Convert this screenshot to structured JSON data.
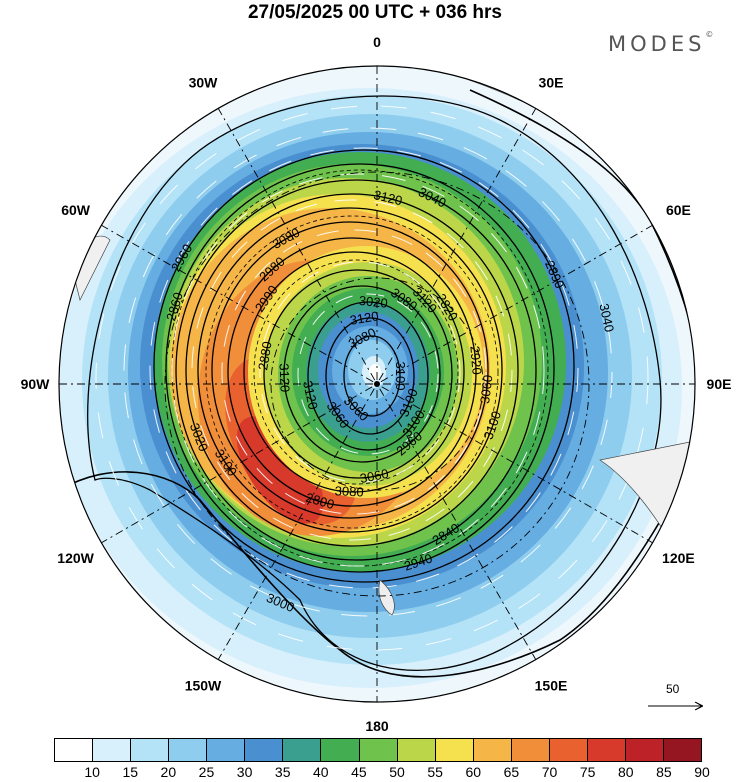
{
  "title": "27/05/2025  00 UTC  + 036 hrs",
  "brand": "MODES",
  "brand_mark": "©",
  "longitude_labels": [
    {
      "text": "0",
      "lon": 0
    },
    {
      "text": "30E",
      "lon": 30
    },
    {
      "text": "60E",
      "lon": 60
    },
    {
      "text": "90E",
      "lon": 90
    },
    {
      "text": "120E",
      "lon": 120
    },
    {
      "text": "150E",
      "lon": 150
    },
    {
      "text": "180",
      "lon": 180
    },
    {
      "text": "150W",
      "lon": 210
    },
    {
      "text": "120W",
      "lon": 240
    },
    {
      "text": "90W",
      "lon": 270
    },
    {
      "text": "60W",
      "lon": 300
    },
    {
      "text": "30W",
      "lon": 330
    }
  ],
  "contour_labels": [
    "3100",
    "3060",
    "3020",
    "2960",
    "2880",
    "2820",
    "2800",
    "3080",
    "3100",
    "3020",
    "3040",
    "2940",
    "2960",
    "3040",
    "3060",
    "3120",
    "3100",
    "3120",
    "3120",
    "3080",
    "2980",
    "3060",
    "3100",
    "3120",
    "2840",
    "2860",
    "2890",
    "3000",
    "3080",
    "3100",
    "3120",
    "3080",
    "3060",
    "2990",
    "2920"
  ],
  "colorbar": {
    "ticks": [
      "10",
      "15",
      "20",
      "25",
      "30",
      "35",
      "40",
      "45",
      "50",
      "55",
      "60",
      "65",
      "70",
      "75",
      "80",
      "85",
      "90"
    ],
    "colors": [
      "#ffffff",
      "#d7f0fc",
      "#b4e2f7",
      "#8fcdef",
      "#66ade2",
      "#4a8fd0",
      "#3b9f8f",
      "#43ad52",
      "#6fc24b",
      "#bcd64a",
      "#f5e04e",
      "#f5b547",
      "#f08e3a",
      "#e8612e",
      "#d73a2a",
      "#bd2228",
      "#951620"
    ]
  },
  "reference_vector": {
    "value": "50"
  }
}
